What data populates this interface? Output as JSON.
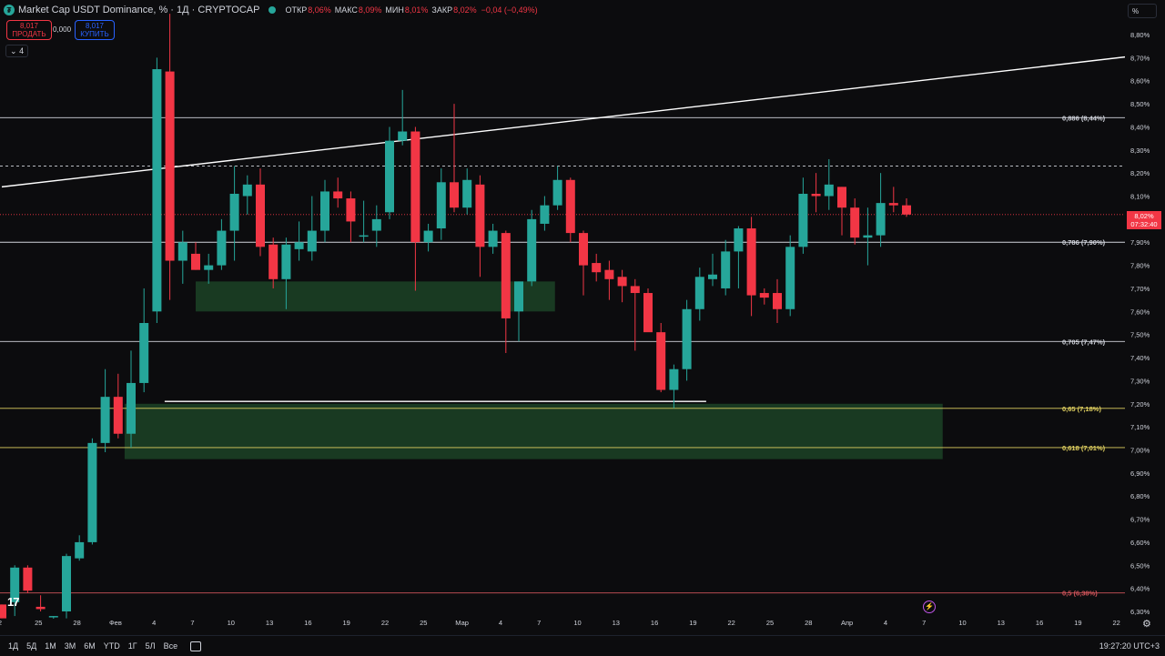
{
  "header": {
    "title": "Market Cap USDT Dominance, %",
    "interval": "1Д",
    "source": "CRYPTOCAP",
    "open_label": "ОТКР",
    "open_value": "8,06%",
    "high_label": "МАКС",
    "high_value": "8,09%",
    "low_label": "МИН",
    "low_value": "8,01%",
    "close_label": "ЗАКР",
    "close_value": "8,02%",
    "change": "−0,04 (−0,49%)"
  },
  "trade": {
    "sell_price": "8,017",
    "sell_label": "ПРОДАТЬ",
    "spread": "0,000",
    "buy_price": "8,017",
    "buy_label": "КУПИТЬ"
  },
  "indicators_count": "4",
  "scale_mode": "%",
  "last_price": {
    "value": "8,02%",
    "countdown": "07:32:40"
  },
  "bottom": {
    "timeframes": [
      "1Д",
      "5Д",
      "1М",
      "3М",
      "6М",
      "YTD",
      "1Г",
      "5Л",
      "Все"
    ],
    "clock": "19:27:20 UTC+3"
  },
  "logo_text": "17",
  "colors": {
    "up": "#26a69a",
    "down": "#f23645",
    "fib_white": "#d1d4dc",
    "fib_yellow": "#e0d060",
    "fib_red": "#d0545a",
    "zone": "#1e4a2a"
  },
  "chart_data": {
    "type": "candlestick",
    "title": "Market Cap USDT Dominance, %",
    "y_axis": {
      "unit": "%",
      "ylim": [
        6.29,
        8.92
      ],
      "ticks": [
        "6,30%",
        "6,40%",
        "6,50%",
        "6,60%",
        "6,70%",
        "6,80%",
        "6,90%",
        "7,00%",
        "7,10%",
        "7,20%",
        "7,30%",
        "7,40%",
        "7,50%",
        "7,60%",
        "7,70%",
        "7,80%",
        "7,90%",
        "8,00%",
        "8,10%",
        "8,20%",
        "8,30%",
        "8,40%",
        "8,50%",
        "8,60%",
        "8,70%",
        "8,80%"
      ]
    },
    "x_axis": {
      "labels": [
        "2",
        "25",
        "28",
        "Фев",
        "4",
        "7",
        "10",
        "13",
        "16",
        "19",
        "22",
        "25",
        "Мар",
        "4",
        "7",
        "10",
        "13",
        "16",
        "19",
        "22",
        "25",
        "28",
        "Апр",
        "4",
        "7",
        "10",
        "13",
        "16",
        "19",
        "22"
      ]
    },
    "candles": [
      {
        "o": 6.33,
        "h": 6.33,
        "l": 6.27,
        "c": 6.27
      },
      {
        "o": 6.34,
        "h": 6.5,
        "l": 6.28,
        "c": 6.49
      },
      {
        "o": 6.49,
        "h": 6.5,
        "l": 6.38,
        "c": 6.39
      },
      {
        "o": 6.32,
        "h": 6.37,
        "l": 6.3,
        "c": 6.31
      },
      {
        "o": 6.28,
        "h": 6.28,
        "l": 6.26,
        "c": 6.28
      },
      {
        "o": 6.3,
        "h": 6.55,
        "l": 6.27,
        "c": 6.54
      },
      {
        "o": 6.53,
        "h": 6.63,
        "l": 6.52,
        "c": 6.6
      },
      {
        "o": 6.6,
        "h": 7.05,
        "l": 6.59,
        "c": 7.03
      },
      {
        "o": 7.03,
        "h": 7.35,
        "l": 6.99,
        "c": 7.23
      },
      {
        "o": 7.23,
        "h": 7.33,
        "l": 7.05,
        "c": 7.07
      },
      {
        "o": 7.07,
        "h": 7.43,
        "l": 7.01,
        "c": 7.29
      },
      {
        "o": 7.29,
        "h": 7.7,
        "l": 7.25,
        "c": 7.55
      },
      {
        "o": 7.6,
        "h": 8.7,
        "l": 7.55,
        "c": 8.65
      },
      {
        "o": 8.64,
        "h": 8.89,
        "l": 7.65,
        "c": 7.82
      },
      {
        "o": 7.82,
        "h": 7.95,
        "l": 7.72,
        "c": 7.9
      },
      {
        "o": 7.85,
        "h": 7.9,
        "l": 7.78,
        "c": 7.78
      },
      {
        "o": 7.78,
        "h": 7.85,
        "l": 7.72,
        "c": 7.8
      },
      {
        "o": 7.8,
        "h": 8.0,
        "l": 7.78,
        "c": 7.95
      },
      {
        "o": 7.95,
        "h": 8.23,
        "l": 7.82,
        "c": 8.11
      },
      {
        "o": 8.1,
        "h": 8.19,
        "l": 8.02,
        "c": 8.15
      },
      {
        "o": 8.15,
        "h": 8.22,
        "l": 7.84,
        "c": 7.88
      },
      {
        "o": 7.89,
        "h": 7.92,
        "l": 7.7,
        "c": 7.74
      },
      {
        "o": 7.74,
        "h": 7.92,
        "l": 7.61,
        "c": 7.89
      },
      {
        "o": 7.87,
        "h": 7.99,
        "l": 7.82,
        "c": 7.9
      },
      {
        "o": 7.86,
        "h": 8.1,
        "l": 7.82,
        "c": 7.95
      },
      {
        "o": 7.95,
        "h": 8.17,
        "l": 7.9,
        "c": 8.12
      },
      {
        "o": 8.12,
        "h": 8.18,
        "l": 8.05,
        "c": 8.09
      },
      {
        "o": 8.09,
        "h": 8.12,
        "l": 7.9,
        "c": 7.99
      },
      {
        "o": 7.93,
        "h": 8.08,
        "l": 7.9,
        "c": 7.93
      },
      {
        "o": 7.95,
        "h": 8.06,
        "l": 7.88,
        "c": 8.0
      },
      {
        "o": 8.03,
        "h": 8.4,
        "l": 8.0,
        "c": 8.34
      },
      {
        "o": 8.34,
        "h": 8.56,
        "l": 8.32,
        "c": 8.38
      },
      {
        "o": 8.38,
        "h": 8.4,
        "l": 7.69,
        "c": 7.9
      },
      {
        "o": 7.9,
        "h": 7.98,
        "l": 7.86,
        "c": 7.95
      },
      {
        "o": 7.96,
        "h": 8.22,
        "l": 7.91,
        "c": 8.16
      },
      {
        "o": 8.16,
        "h": 8.5,
        "l": 8.03,
        "c": 8.05
      },
      {
        "o": 8.05,
        "h": 8.22,
        "l": 8.02,
        "c": 8.17
      },
      {
        "o": 8.15,
        "h": 8.19,
        "l": 7.75,
        "c": 7.88
      },
      {
        "o": 7.88,
        "h": 7.98,
        "l": 7.85,
        "c": 7.95
      },
      {
        "o": 7.94,
        "h": 7.95,
        "l": 7.42,
        "c": 7.57
      },
      {
        "o": 7.6,
        "h": 7.73,
        "l": 7.47,
        "c": 7.73
      },
      {
        "o": 7.73,
        "h": 8.04,
        "l": 7.71,
        "c": 8.0
      },
      {
        "o": 7.98,
        "h": 8.1,
        "l": 7.95,
        "c": 8.06
      },
      {
        "o": 8.06,
        "h": 8.23,
        "l": 8.04,
        "c": 8.17
      },
      {
        "o": 8.17,
        "h": 8.18,
        "l": 7.9,
        "c": 7.94
      },
      {
        "o": 7.94,
        "h": 7.95,
        "l": 7.67,
        "c": 7.8
      },
      {
        "o": 7.81,
        "h": 7.85,
        "l": 7.73,
        "c": 7.77
      },
      {
        "o": 7.78,
        "h": 7.82,
        "l": 7.65,
        "c": 7.74
      },
      {
        "o": 7.75,
        "h": 7.78,
        "l": 7.64,
        "c": 7.71
      },
      {
        "o": 7.71,
        "h": 7.74,
        "l": 7.43,
        "c": 7.68
      },
      {
        "o": 7.68,
        "h": 7.7,
        "l": 7.52,
        "c": 7.51
      },
      {
        "o": 7.51,
        "h": 7.55,
        "l": 7.25,
        "c": 7.26
      },
      {
        "o": 7.26,
        "h": 7.37,
        "l": 7.18,
        "c": 7.35
      },
      {
        "o": 7.35,
        "h": 7.65,
        "l": 7.3,
        "c": 7.61
      },
      {
        "o": 7.61,
        "h": 7.79,
        "l": 7.56,
        "c": 7.75
      },
      {
        "o": 7.74,
        "h": 7.85,
        "l": 7.71,
        "c": 7.76
      },
      {
        "o": 7.7,
        "h": 7.91,
        "l": 7.67,
        "c": 7.86
      },
      {
        "o": 7.86,
        "h": 7.97,
        "l": 7.7,
        "c": 7.96
      },
      {
        "o": 7.96,
        "h": 8.01,
        "l": 7.58,
        "c": 7.67
      },
      {
        "o": 7.68,
        "h": 7.7,
        "l": 7.63,
        "c": 7.66
      },
      {
        "o": 7.68,
        "h": 7.74,
        "l": 7.55,
        "c": 7.61
      },
      {
        "o": 7.61,
        "h": 7.93,
        "l": 7.58,
        "c": 7.88
      },
      {
        "o": 7.88,
        "h": 8.18,
        "l": 7.85,
        "c": 8.11
      },
      {
        "o": 8.11,
        "h": 8.2,
        "l": 8.03,
        "c": 8.1
      },
      {
        "o": 8.1,
        "h": 8.26,
        "l": 8.04,
        "c": 8.15
      },
      {
        "o": 8.14,
        "h": 8.14,
        "l": 7.93,
        "c": 8.05
      },
      {
        "o": 8.05,
        "h": 8.09,
        "l": 7.89,
        "c": 7.92
      },
      {
        "o": 7.92,
        "h": 8.05,
        "l": 7.8,
        "c": 7.93
      },
      {
        "o": 7.93,
        "h": 8.2,
        "l": 7.88,
        "c": 8.07
      },
      {
        "o": 8.07,
        "h": 8.14,
        "l": 8.03,
        "c": 8.06
      },
      {
        "o": 8.06,
        "h": 8.09,
        "l": 8.01,
        "c": 8.02
      }
    ],
    "fib_levels": [
      {
        "ratio": "0,886",
        "value": 8.44,
        "label": "0,886 (8,44%)",
        "color": "white"
      },
      {
        "ratio": "0,786",
        "value": 7.9,
        "label": "0,786 (7,90%)",
        "color": "white"
      },
      {
        "ratio": "0,705",
        "value": 7.47,
        "label": "0,705 (7,47%)",
        "color": "white"
      },
      {
        "ratio": "0,65",
        "value": 7.18,
        "label": "0,65 (7,18%)",
        "color": "yellow"
      },
      {
        "ratio": "0,618",
        "value": 7.01,
        "label": "0,618 (7,01%)",
        "color": "yellow"
      },
      {
        "ratio": "0,5",
        "value": 6.38,
        "label": "0,5 (6,38%)",
        "color": "red"
      }
    ],
    "dashed_level": 8.23,
    "last_close": 8.02,
    "trendline": {
      "from": {
        "i": 0,
        "v": 8.14
      },
      "to": {
        "i": 88,
        "v": 8.71
      }
    },
    "support_line": {
      "from_i": 12.6,
      "to_i": 54.5,
      "v": 7.21
    },
    "zones": [
      {
        "from_i": 15,
        "to_i": 42.8,
        "top": 7.73,
        "bottom": 7.6
      },
      {
        "from_i": 9.5,
        "to_i": 72.8,
        "top": 7.2,
        "bottom": 6.96
      }
    ],
    "grid": false
  }
}
